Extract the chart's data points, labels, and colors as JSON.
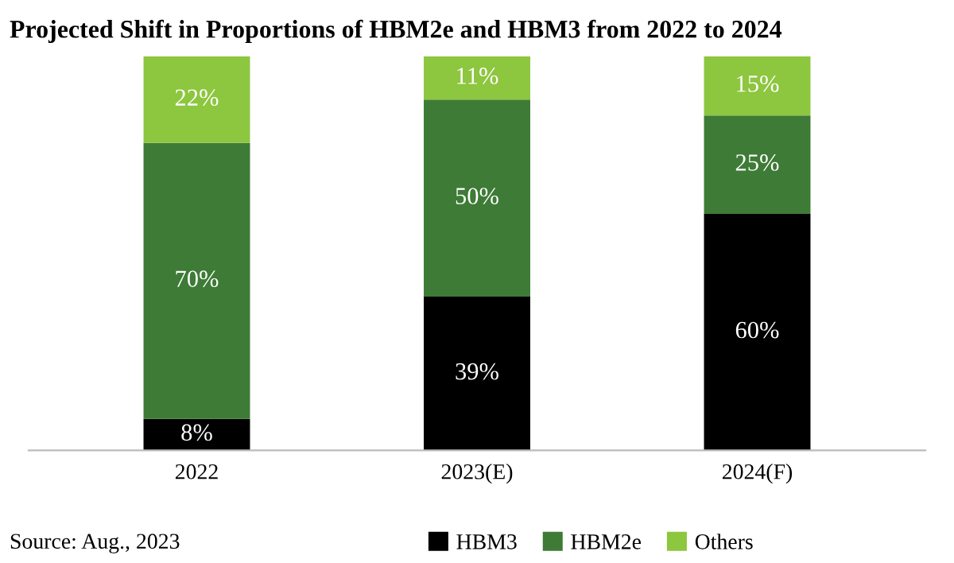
{
  "chart_data": {
    "type": "bar",
    "stacked": true,
    "title": "Projected Shift in Proportions of HBM2e and HBM3 from 2022 to 2024",
    "categories": [
      "2022",
      "2023(E)",
      "2024(F)"
    ],
    "series": [
      {
        "name": "HBM3",
        "color": "#000000",
        "values": [
          8,
          39,
          60
        ],
        "value_labels": [
          "8%",
          "39%",
          "60%"
        ]
      },
      {
        "name": "HBM2e",
        "color": "#3e7b36",
        "values": [
          70,
          50,
          25
        ],
        "value_labels": [
          "70%",
          "50%",
          "25%"
        ]
      },
      {
        "name": "Others",
        "color": "#8dc63f",
        "values": [
          22,
          11,
          15
        ],
        "value_labels": [
          "22%",
          "11%",
          "15%"
        ]
      }
    ],
    "legend": "bottom",
    "grid": false,
    "annotations": [
      "Source: Aug., 2023"
    ]
  }
}
